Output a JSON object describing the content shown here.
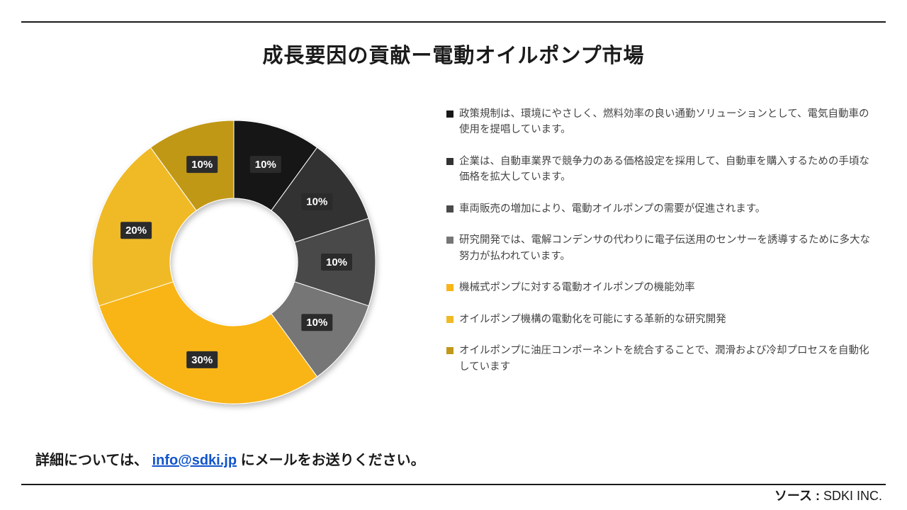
{
  "title": "成長要因の貢献ー電動オイルポンプ市場",
  "chart": {
    "type": "donut",
    "inner_radius_ratio": 0.45,
    "background_color": "#ffffff",
    "label_color": "#ffffff",
    "label_fontsize": 15,
    "label_fontweight": "bold",
    "slices": [
      {
        "value": 10,
        "label": "10%",
        "color": "#181818"
      },
      {
        "value": 10,
        "label": "10%",
        "color": "#333333"
      },
      {
        "value": 10,
        "label": "10%",
        "color": "#4a4a4a"
      },
      {
        "value": 10,
        "label": "10%",
        "color": "#767676"
      },
      {
        "value": 30,
        "label": "30%",
        "color": "#f9b518"
      },
      {
        "value": 20,
        "label": "20%",
        "color": "#f0ba26"
      },
      {
        "value": 10,
        "label": "10%",
        "color": "#c19818"
      }
    ]
  },
  "legend": {
    "items": [
      {
        "color": "#181818",
        "text": "政策規制は、環境にやさしく、燃料効率の良い通勤ソリューションとして、電気自動車の使用を提唱しています。"
      },
      {
        "color": "#333333",
        "text": "企業は、自動車業界で競争力のある価格設定を採用して、自動車を購入するための手頃な価格を拡大しています。"
      },
      {
        "color": "#4a4a4a",
        "text": "車両販売の増加により、電動オイルポンプの需要が促進されます。"
      },
      {
        "color": "#767676",
        "text": "研究開発では、電解コンデンサの代わりに電子伝送用のセンサーを誘導するために多大な努力が払われています。"
      },
      {
        "color": "#f9b518",
        "text": "機械式ポンプに対する電動オイルポンプの機能効率"
      },
      {
        "color": "#f0ba26",
        "text": "オイルポンプ機構の電動化を可能にする革新的な研究開発"
      },
      {
        "color": "#c19818",
        "text": "オイルポンプに油圧コンポーネントを統合することで、潤滑および冷却プロセスを自動化しています"
      }
    ]
  },
  "footer": {
    "left_prefix": "詳細については、",
    "left_link": "info@sdki.jp",
    "left_suffix": "にメールをお送りください。",
    "right_label": "ソース :",
    "right_value": "SDKI INC."
  }
}
